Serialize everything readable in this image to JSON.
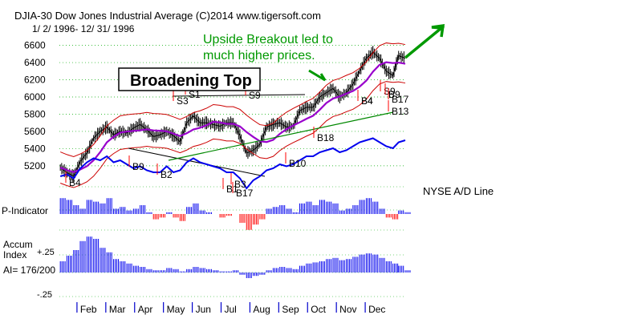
{
  "header": {
    "line1": "DJIA-30  Dow Jones Industrial Average  (C)2014 www.tigersoft.com",
    "line2": "1/ 2/ 1996-  12/ 31/ 1996"
  },
  "annotations": {
    "pattern": "Broadening Top",
    "breakout_line1": "Upside Breakout led to",
    "breakout_line2": "much higher prices."
  },
  "panels": {
    "ad_line": "NYSE A/D Line",
    "p_indicator": "P-Indicator",
    "accum_line1": "Accum",
    "accum_line2": "Index",
    "ai": "AI= 176/200",
    "accum_top": "+.25",
    "accum_bottom": "-.25"
  },
  "colors": {
    "price": "#000000",
    "ma": "#9900cc",
    "band": "#cc0000",
    "trend": "#008800",
    "ad": "#0000ee",
    "signal": "#ff0000",
    "annotation": "#009900"
  },
  "chart_data": {
    "type": "line",
    "title": "DJIA-30  Dow Jones Industrial Average",
    "x_range": [
      "1996-01-02",
      "1996-12-31"
    ],
    "x_ticks": [
      "Feb",
      "Mar",
      "Apr",
      "May",
      "Jun",
      "Jul",
      "Aug",
      "Sep",
      "Oct",
      "Nov",
      "Dec"
    ],
    "y_ticks": [
      5200,
      5400,
      5600,
      5800,
      6000,
      6200,
      6400,
      6600
    ],
    "ylim": [
      5050,
      6680
    ],
    "series": [
      {
        "x": [
          "1996-01-03",
          "1996-01-10",
          "1996-01-17",
          "1996-01-24",
          "1996-01-31",
          "1996-02-07",
          "1996-02-14",
          "1996-02-21",
          "1996-02-28",
          "1996-03-06",
          "1996-03-13",
          "1996-03-20",
          "1996-03-27",
          "1996-04-03",
          "1996-04-10",
          "1996-04-17",
          "1996-04-24",
          "1996-05-01",
          "1996-05-08",
          "1996-05-15",
          "1996-05-22",
          "1996-05-29",
          "1996-06-05",
          "1996-06-12",
          "1996-06-19",
          "1996-06-26",
          "1996-07-03",
          "1996-07-10",
          "1996-07-17",
          "1996-07-24",
          "1996-07-31",
          "1996-08-07",
          "1996-08-14",
          "1996-08-21",
          "1996-08-28",
          "1996-09-04",
          "1996-09-11",
          "1996-09-18",
          "1996-09-25",
          "1996-10-02",
          "1996-10-09",
          "1996-10-16",
          "1996-10-23",
          "1996-10-30",
          "1996-11-06",
          "1996-11-13",
          "1996-11-20",
          "1996-11-27",
          "1996-12-04",
          "1996-12-11",
          "1996-12-18",
          "1996-12-24",
          "1996-12-31"
        ],
        "values": [
          5180,
          5120,
          5080,
          5250,
          5350,
          5520,
          5600,
          5650,
          5560,
          5600,
          5580,
          5640,
          5680,
          5620,
          5540,
          5560,
          5600,
          5550,
          5480,
          5700,
          5780,
          5700,
          5700,
          5680,
          5660,
          5700,
          5700,
          5550,
          5350,
          5380,
          5450,
          5650,
          5680,
          5700,
          5650,
          5660,
          5840,
          5880,
          5880,
          6000,
          6050,
          6100,
          6000,
          6050,
          6150,
          6300,
          6450,
          6520,
          6450,
          6300,
          6250,
          6480,
          6450
        ]
      }
    ],
    "ad_line": [
      0.8,
      0.9,
      0.7,
      1.2,
      1.5,
      1.7,
      1.6,
      1.8,
      1.5,
      1.6,
      1.4,
      1.2,
      1.3,
      1.1,
      1.0,
      1.0,
      1.3,
      1.0,
      1.1,
      1.5,
      1.7,
      1.5,
      1.4,
      1.3,
      1.2,
      1.0,
      1.0,
      0.7,
      0.2,
      0.6,
      0.8,
      1.1,
      1.2,
      1.4,
      1.3,
      1.4,
      1.6,
      1.8,
      1.8,
      2.0,
      2.1,
      2.2,
      2.0,
      2.1,
      2.3,
      2.5,
      2.6,
      2.7,
      2.5,
      2.3,
      2.2,
      2.5,
      2.6
    ],
    "p_indicator": [
      0.9,
      0.8,
      0.5,
      0.3,
      0.8,
      0.7,
      0.6,
      0.9,
      0.3,
      0.4,
      0.2,
      0.3,
      0.5,
      0.1,
      -0.3,
      -0.2,
      0.1,
      -0.2,
      -0.4,
      0.4,
      0.6,
      0.2,
      0.1,
      0.0,
      -0.2,
      -0.1,
      0.0,
      -0.5,
      -0.9,
      -0.6,
      -0.3,
      0.3,
      0.4,
      0.5,
      0.3,
      0.1,
      0.6,
      0.7,
      0.5,
      0.8,
      0.7,
      0.6,
      0.2,
      0.3,
      0.5,
      0.8,
      0.9,
      0.7,
      0.3,
      -0.2,
      -0.3,
      0.2,
      0.1
    ],
    "accum_index": [
      0.1,
      0.15,
      0.2,
      0.28,
      0.32,
      0.3,
      0.22,
      0.18,
      0.12,
      0.1,
      0.08,
      0.06,
      0.05,
      0.03,
      0.02,
      0.02,
      0.04,
      0.03,
      0.01,
      0.03,
      0.05,
      0.04,
      0.03,
      0.02,
      0.01,
      0.01,
      0.02,
      -0.02,
      -0.05,
      -0.03,
      -0.02,
      0.02,
      0.04,
      0.05,
      0.04,
      0.03,
      0.06,
      0.08,
      0.09,
      0.1,
      0.12,
      0.13,
      0.11,
      0.12,
      0.14,
      0.16,
      0.17,
      0.16,
      0.13,
      0.1,
      0.08,
      0.06,
      0.02
    ],
    "signals": [
      "B4",
      "B9",
      "B2",
      "S3",
      "S1",
      "B4",
      "B1",
      "B3",
      "B17",
      "S9",
      "B10",
      "B18",
      "B4",
      "S9",
      "B9",
      "B17",
      "B13"
    ],
    "text_labels": [
      "NYSE A/D Line",
      "P-Indicator",
      "Accum",
      "Index",
      "AI= 176/200"
    ],
    "grid": true,
    "legend": "none"
  }
}
